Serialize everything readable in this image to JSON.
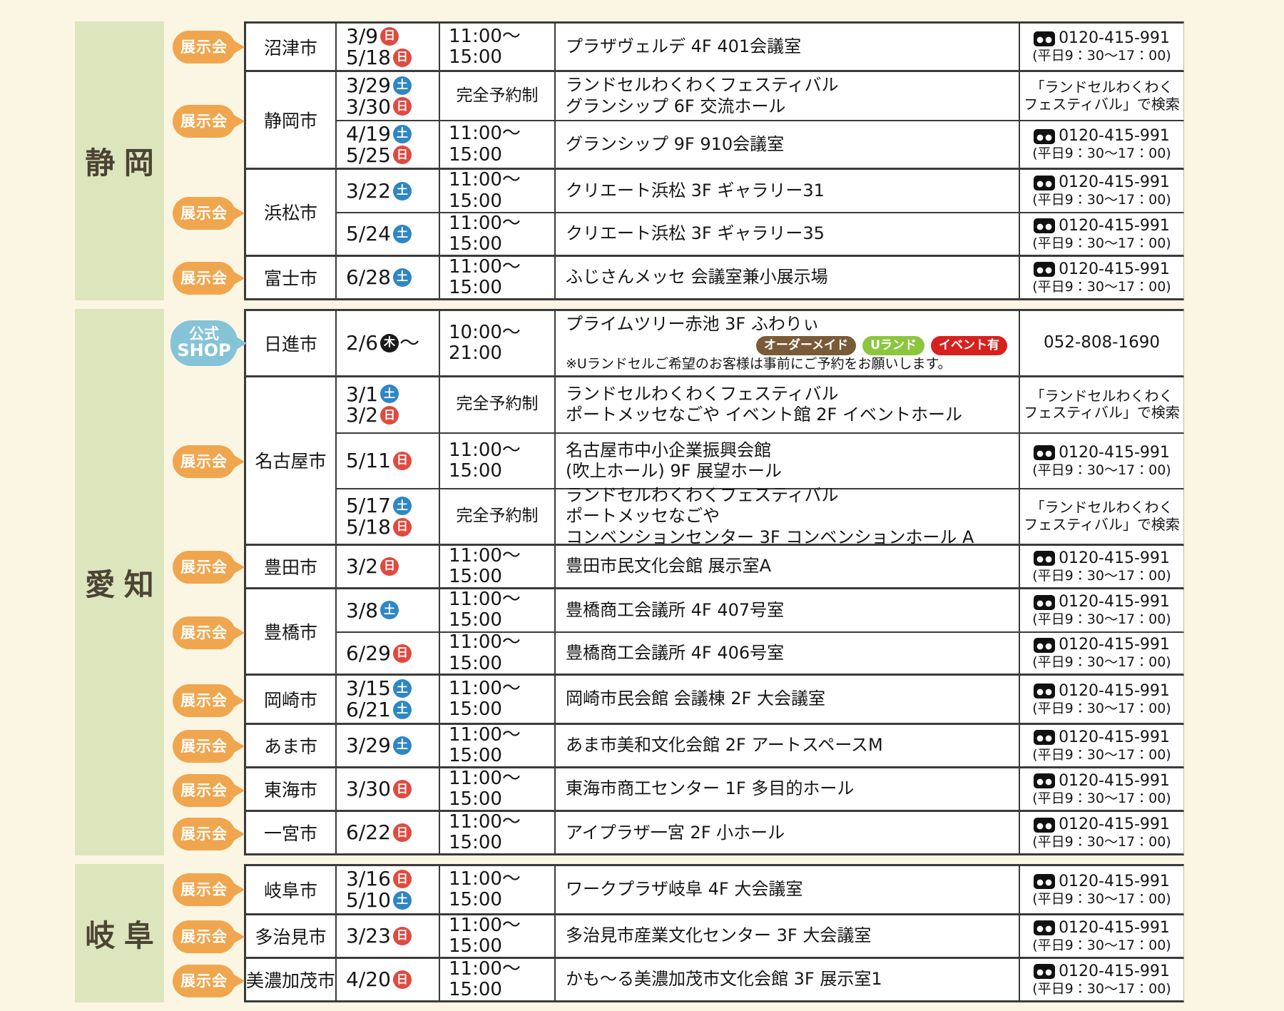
{
  "colors": {
    "page_bg": "#FBF6E3",
    "section_green": "#DDE5BC",
    "prefecture_text": "#4A4435",
    "exhibition_badge_orange": "#F0A64E",
    "official_shop_badge_blue": "#85C4D6",
    "sunday_red": "#E04A3F",
    "saturday_blue": "#2E86C6",
    "thursday_black": "#1A1A1A",
    "tag_brown": "#7A5B38",
    "tag_green": "#8CC63F",
    "tag_red": "#D7211E"
  },
  "day_styles": {
    "日": "sun",
    "土": "sat",
    "木": "thu"
  },
  "sections": [
    {
      "prefecture": "静岡",
      "groups": [
        {
          "badge": {
            "type": "exhibition",
            "label": "展示会"
          },
          "city": "沼津市",
          "events": [
            {
              "dates": [
                {
                  "date": "3/9",
                  "day": "日"
                },
                {
                  "date": "5/18",
                  "day": "日"
                }
              ],
              "time": {
                "type": "range",
                "lines": [
                  "11:00～",
                  "15:00"
                ]
              },
              "venue": {
                "lines": [
                  "プラザヴェルデ 4F 401会議室"
                ]
              },
              "contact": {
                "type": "freedial",
                "number": "0120-415-991",
                "hours": "(平日9：30～17：00)"
              }
            }
          ]
        },
        {
          "badge": {
            "type": "exhibition",
            "label": "展示会"
          },
          "city": "静岡市",
          "events": [
            {
              "dates": [
                {
                  "date": "3/29",
                  "day": "土"
                },
                {
                  "date": "3/30",
                  "day": "日"
                }
              ],
              "time": {
                "type": "reserved",
                "label": "完全予約制"
              },
              "venue": {
                "lines": [
                  "ランドセルわくわくフェスティバル",
                  "グランシップ 6F 交流ホール"
                ]
              },
              "contact": {
                "type": "search",
                "lines": [
                  "「ランドセルわくわく",
                  "フェスティバル」で検索"
                ]
              }
            },
            {
              "dates": [
                {
                  "date": "4/19",
                  "day": "土"
                },
                {
                  "date": "5/25",
                  "day": "日"
                }
              ],
              "time": {
                "type": "range",
                "lines": [
                  "11:00～",
                  "15:00"
                ]
              },
              "venue": {
                "lines": [
                  "グランシップ 9F 910会議室"
                ]
              },
              "contact": {
                "type": "freedial",
                "number": "0120-415-991",
                "hours": "(平日9：30～17：00)"
              }
            }
          ]
        },
        {
          "badge": {
            "type": "exhibition",
            "label": "展示会"
          },
          "city": "浜松市",
          "events": [
            {
              "dates": [
                {
                  "date": "3/22",
                  "day": "土"
                }
              ],
              "time": {
                "type": "range",
                "lines": [
                  "11:00～",
                  "15:00"
                ]
              },
              "venue": {
                "lines": [
                  "クリエート浜松 3F ギャラリー31"
                ]
              },
              "contact": {
                "type": "freedial",
                "number": "0120-415-991",
                "hours": "(平日9：30～17：00)"
              }
            },
            {
              "dates": [
                {
                  "date": "5/24",
                  "day": "土"
                }
              ],
              "time": {
                "type": "range",
                "lines": [
                  "11:00～",
                  "15:00"
                ]
              },
              "venue": {
                "lines": [
                  "クリエート浜松 3F ギャラリー35"
                ]
              },
              "contact": {
                "type": "freedial",
                "number": "0120-415-991",
                "hours": "(平日9：30～17：00)"
              }
            }
          ]
        },
        {
          "badge": {
            "type": "exhibition",
            "label": "展示会"
          },
          "city": "富士市",
          "events": [
            {
              "dates": [
                {
                  "date": "6/28",
                  "day": "土"
                }
              ],
              "time": {
                "type": "range",
                "lines": [
                  "11:00～",
                  "15:00"
                ]
              },
              "venue": {
                "lines": [
                  "ふじさんメッセ 会議室兼小展示場"
                ]
              },
              "contact": {
                "type": "freedial",
                "number": "0120-415-991",
                "hours": "(平日9：30～17：00)"
              }
            }
          ]
        }
      ]
    },
    {
      "prefecture": "愛知",
      "groups": [
        {
          "badge": {
            "type": "shop",
            "lines": [
              "公式",
              "SHOP"
            ]
          },
          "city": "日進市",
          "events": [
            {
              "dates": [
                {
                  "date": "2/6",
                  "day": "木",
                  "suffix": "～"
                }
              ],
              "time": {
                "type": "range",
                "lines": [
                  "10:00～",
                  "21:00"
                ]
              },
              "venue": {
                "lines": [
                  "プライムツリー赤池 3F ふわりぃ"
                ],
                "tags": [
                  {
                    "label": "オーダーメイド",
                    "color": "brown"
                  },
                  {
                    "label": "Uランド",
                    "color": "green"
                  },
                  {
                    "label": "イベント有",
                    "color": "red"
                  }
                ],
                "note": "※Uランドセルご希望のお客様は事前にご予約をお願いします。"
              },
              "contact": {
                "type": "plain",
                "number": "052-808-1690"
              }
            }
          ]
        },
        {
          "badge": {
            "type": "exhibition",
            "label": "展示会"
          },
          "city": "名古屋市",
          "events": [
            {
              "dates": [
                {
                  "date": "3/1",
                  "day": "土"
                },
                {
                  "date": "3/2",
                  "day": "日"
                }
              ],
              "time": {
                "type": "reserved",
                "label": "完全予約制"
              },
              "venue": {
                "lines": [
                  "ランドセルわくわくフェスティバル",
                  "ポートメッセなごや イベント館 2F イベントホール"
                ]
              },
              "contact": {
                "type": "search",
                "lines": [
                  "「ランドセルわくわく",
                  "フェスティバル」で検索"
                ]
              }
            },
            {
              "dates": [
                {
                  "date": "5/11",
                  "day": "日"
                }
              ],
              "time": {
                "type": "range",
                "lines": [
                  "11:00～",
                  "15:00"
                ]
              },
              "venue": {
                "lines": [
                  "名古屋市中小企業振興会館",
                  "(吹上ホール) 9F 展望ホール"
                ]
              },
              "contact": {
                "type": "freedial",
                "number": "0120-415-991",
                "hours": "(平日9：30～17：00)"
              }
            },
            {
              "dates": [
                {
                  "date": "5/17",
                  "day": "土"
                },
                {
                  "date": "5/18",
                  "day": "日"
                }
              ],
              "time": {
                "type": "reserved",
                "label": "完全予約制"
              },
              "venue": {
                "lines": [
                  "ランドセルわくわくフェスティバル",
                  "ポートメッセなごや",
                  "コンベンションセンター 3F コンベンションホール A"
                ]
              },
              "contact": {
                "type": "search",
                "lines": [
                  "「ランドセルわくわく",
                  "フェスティバル」で検索"
                ]
              }
            }
          ]
        },
        {
          "badge": {
            "type": "exhibition",
            "label": "展示会"
          },
          "city": "豊田市",
          "events": [
            {
              "dates": [
                {
                  "date": "3/2",
                  "day": "日"
                }
              ],
              "time": {
                "type": "range",
                "lines": [
                  "11:00～",
                  "15:00"
                ]
              },
              "venue": {
                "lines": [
                  "豊田市民文化会館 展示室A"
                ]
              },
              "contact": {
                "type": "freedial",
                "number": "0120-415-991",
                "hours": "(平日9：30～17：00)"
              }
            }
          ]
        },
        {
          "badge": {
            "type": "exhibition",
            "label": "展示会"
          },
          "city": "豊橋市",
          "events": [
            {
              "dates": [
                {
                  "date": "3/8",
                  "day": "土"
                }
              ],
              "time": {
                "type": "range",
                "lines": [
                  "11:00～",
                  "15:00"
                ]
              },
              "venue": {
                "lines": [
                  "豊橋商工会議所 4F 407号室"
                ]
              },
              "contact": {
                "type": "freedial",
                "number": "0120-415-991",
                "hours": "(平日9：30～17：00)"
              }
            },
            {
              "dates": [
                {
                  "date": "6/29",
                  "day": "日"
                }
              ],
              "time": {
                "type": "range",
                "lines": [
                  "11:00～",
                  "15:00"
                ]
              },
              "venue": {
                "lines": [
                  "豊橋商工会議所 4F 406号室"
                ]
              },
              "contact": {
                "type": "freedial",
                "number": "0120-415-991",
                "hours": "(平日9：30～17：00)"
              }
            }
          ]
        },
        {
          "badge": {
            "type": "exhibition",
            "label": "展示会"
          },
          "city": "岡崎市",
          "events": [
            {
              "dates": [
                {
                  "date": "3/15",
                  "day": "土"
                },
                {
                  "date": "6/21",
                  "day": "土"
                }
              ],
              "time": {
                "type": "range",
                "lines": [
                  "11:00～",
                  "15:00"
                ]
              },
              "venue": {
                "lines": [
                  "岡崎市民会館 会議棟 2F 大会議室"
                ]
              },
              "contact": {
                "type": "freedial",
                "number": "0120-415-991",
                "hours": "(平日9：30～17：00)"
              }
            }
          ]
        },
        {
          "badge": {
            "type": "exhibition",
            "label": "展示会"
          },
          "city": "あま市",
          "events": [
            {
              "dates": [
                {
                  "date": "3/29",
                  "day": "土"
                }
              ],
              "time": {
                "type": "range",
                "lines": [
                  "11:00～",
                  "15:00"
                ]
              },
              "venue": {
                "lines": [
                  "あま市美和文化会館 2F アートスペースM"
                ]
              },
              "contact": {
                "type": "freedial",
                "number": "0120-415-991",
                "hours": "(平日9：30～17：00)"
              }
            }
          ]
        },
        {
          "badge": {
            "type": "exhibition",
            "label": "展示会"
          },
          "city": "東海市",
          "events": [
            {
              "dates": [
                {
                  "date": "3/30",
                  "day": "日"
                }
              ],
              "time": {
                "type": "range",
                "lines": [
                  "11:00～",
                  "15:00"
                ]
              },
              "venue": {
                "lines": [
                  "東海市商工センター 1F 多目的ホール"
                ]
              },
              "contact": {
                "type": "freedial",
                "number": "0120-415-991",
                "hours": "(平日9：30～17：00)"
              }
            }
          ]
        },
        {
          "badge": {
            "type": "exhibition",
            "label": "展示会"
          },
          "city": "一宮市",
          "events": [
            {
              "dates": [
                {
                  "date": "6/22",
                  "day": "日"
                }
              ],
              "time": {
                "type": "range",
                "lines": [
                  "11:00～",
                  "15:00"
                ]
              },
              "venue": {
                "lines": [
                  "アイプラザ一宮 2F 小ホール"
                ]
              },
              "contact": {
                "type": "freedial",
                "number": "0120-415-991",
                "hours": "(平日9：30～17：00)"
              }
            }
          ]
        }
      ]
    },
    {
      "prefecture": "岐阜",
      "groups": [
        {
          "badge": {
            "type": "exhibition",
            "label": "展示会"
          },
          "city": "岐阜市",
          "events": [
            {
              "dates": [
                {
                  "date": "3/16",
                  "day": "日"
                },
                {
                  "date": "5/10",
                  "day": "土"
                }
              ],
              "time": {
                "type": "range",
                "lines": [
                  "11:00～",
                  "15:00"
                ]
              },
              "venue": {
                "lines": [
                  "ワークプラザ岐阜 4F 大会議室"
                ]
              },
              "contact": {
                "type": "freedial",
                "number": "0120-415-991",
                "hours": "(平日9：30～17：00)"
              }
            }
          ]
        },
        {
          "badge": {
            "type": "exhibition",
            "label": "展示会"
          },
          "city": "多治見市",
          "events": [
            {
              "dates": [
                {
                  "date": "3/23",
                  "day": "日"
                }
              ],
              "time": {
                "type": "range",
                "lines": [
                  "11:00～",
                  "15:00"
                ]
              },
              "venue": {
                "lines": [
                  "多治見市産業文化センター 3F 大会議室"
                ]
              },
              "contact": {
                "type": "freedial",
                "number": "0120-415-991",
                "hours": "(平日9：30～17：00)"
              }
            }
          ]
        },
        {
          "badge": {
            "type": "exhibition",
            "label": "展示会"
          },
          "city": "美濃加茂市",
          "events": [
            {
              "dates": [
                {
                  "date": "4/20",
                  "day": "日"
                }
              ],
              "time": {
                "type": "range",
                "lines": [
                  "11:00～",
                  "15:00"
                ]
              },
              "venue": {
                "lines": [
                  "かも～る美濃加茂市文化会館 3F 展示室1"
                ]
              },
              "contact": {
                "type": "freedial",
                "number": "0120-415-991",
                "hours": "(平日9：30～17：00)"
              }
            }
          ]
        }
      ]
    }
  ]
}
